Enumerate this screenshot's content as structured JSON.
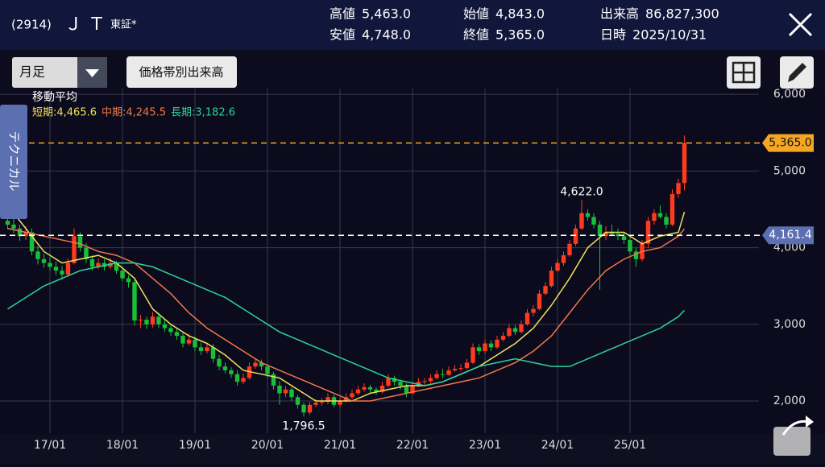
{
  "header": {
    "code": "(2914)",
    "name": "Ｊ Ｔ",
    "market": "東証*",
    "quotes": [
      {
        "label": "高値",
        "value": "5,463.0"
      },
      {
        "label": "安値",
        "value": "4,748.0"
      },
      {
        "label": "始値",
        "value": "4,843.0"
      },
      {
        "label": "終値",
        "value": "5,365.0"
      },
      {
        "label": "出来高",
        "value": "86,827,300"
      },
      {
        "label": "日時",
        "value": "2025/10/31"
      }
    ]
  },
  "toolbar": {
    "period": "月足",
    "volume_button": "価格帯別出来高",
    "side_tab": "テクニカル"
  },
  "chart_data": {
    "type": "candlestick",
    "legend_title": "移動平均",
    "up_color": "#ff3b1f",
    "down_color": "#18c038",
    "ylim": [
      1580,
      6075
    ],
    "yticks": [
      {
        "value": 2000,
        "label": "2,000"
      },
      {
        "value": 3000,
        "label": "3,000"
      },
      {
        "value": 4000,
        "label": "4,000"
      },
      {
        "value": 5000,
        "label": "5,000"
      },
      {
        "value": 6000,
        "label": "6,000"
      }
    ],
    "xticks": [
      "17/01",
      "18/01",
      "19/01",
      "20/01",
      "21/01",
      "22/01",
      "23/01",
      "24/01",
      "25/01"
    ],
    "grid": true,
    "x": [
      "16/06",
      "16/07",
      "16/08",
      "16/09",
      "16/10",
      "16/11",
      "16/12",
      "17/01",
      "17/02",
      "17/03",
      "17/04",
      "17/05",
      "17/06",
      "17/07",
      "17/08",
      "17/09",
      "17/10",
      "17/11",
      "17/12",
      "18/01",
      "18/02",
      "18/03",
      "18/04",
      "18/05",
      "18/06",
      "18/07",
      "18/08",
      "18/09",
      "18/10",
      "18/11",
      "18/12",
      "19/01",
      "19/02",
      "19/03",
      "19/04",
      "19/05",
      "19/06",
      "19/07",
      "19/08",
      "19/09",
      "19/10",
      "19/11",
      "19/12",
      "20/01",
      "20/02",
      "20/03",
      "20/04",
      "20/05",
      "20/06",
      "20/07",
      "20/08",
      "20/09",
      "20/10",
      "20/11",
      "20/12",
      "21/01",
      "21/02",
      "21/03",
      "21/04",
      "21/05",
      "21/06",
      "21/07",
      "21/08",
      "21/09",
      "21/10",
      "21/11",
      "21/12",
      "22/01",
      "22/02",
      "22/03",
      "22/04",
      "22/05",
      "22/06",
      "22/07",
      "22/08",
      "22/09",
      "22/10",
      "22/11",
      "22/12",
      "23/01",
      "23/02",
      "23/03",
      "23/04",
      "23/05",
      "23/06",
      "23/07",
      "23/08",
      "23/09",
      "23/10",
      "23/11",
      "23/12",
      "24/01",
      "24/02",
      "24/03",
      "24/04",
      "24/05",
      "24/06",
      "24/07",
      "24/08",
      "24/09",
      "24/10",
      "24/11",
      "24/12",
      "25/01",
      "25/02",
      "25/03",
      "25/04",
      "25/05",
      "25/06",
      "25/07",
      "25/08",
      "25/09",
      "25/10"
    ],
    "ohlc": [
      [
        4350,
        4420,
        4240,
        4300
      ],
      [
        4300,
        4380,
        4190,
        4250
      ],
      [
        4250,
        4300,
        4090,
        4150
      ],
      [
        4150,
        4280,
        4100,
        4200
      ],
      [
        4200,
        4250,
        3900,
        3950
      ],
      [
        3950,
        4020,
        3780,
        3850
      ],
      [
        3850,
        3920,
        3740,
        3800
      ],
      [
        3800,
        3880,
        3700,
        3750
      ],
      [
        3750,
        3820,
        3640,
        3700
      ],
      [
        3700,
        3760,
        3580,
        3650
      ],
      [
        3650,
        3860,
        3620,
        3800
      ],
      [
        3800,
        4250,
        3780,
        4150
      ],
      [
        4150,
        4200,
        3950,
        4000
      ],
      [
        4000,
        4060,
        3800,
        3850
      ],
      [
        3850,
        3900,
        3700,
        3750
      ],
      [
        3750,
        3860,
        3720,
        3800
      ],
      [
        3800,
        3850,
        3700,
        3750
      ],
      [
        3750,
        3860,
        3720,
        3800
      ],
      [
        3800,
        3830,
        3660,
        3700
      ],
      [
        3700,
        3750,
        3560,
        3600
      ],
      [
        3600,
        3640,
        3480,
        3550
      ],
      [
        3550,
        3580,
        2980,
        3050
      ],
      [
        3050,
        3120,
        2950,
        3060
      ],
      [
        3060,
        3100,
        2940,
        3000
      ],
      [
        3000,
        3160,
        2960,
        3100
      ],
      [
        3100,
        3150,
        2950,
        3000
      ],
      [
        3000,
        3060,
        2900,
        2950
      ],
      [
        2950,
        3000,
        2850,
        2900
      ],
      [
        2900,
        2960,
        2800,
        2850
      ],
      [
        2850,
        2900,
        2700,
        2750
      ],
      [
        2750,
        2880,
        2720,
        2800
      ],
      [
        2800,
        2840,
        2650,
        2700
      ],
      [
        2700,
        2760,
        2600,
        2650
      ],
      [
        2650,
        2760,
        2620,
        2700
      ],
      [
        2700,
        2740,
        2500,
        2550
      ],
      [
        2550,
        2600,
        2400,
        2450
      ],
      [
        2450,
        2500,
        2360,
        2400
      ],
      [
        2400,
        2440,
        2300,
        2350
      ],
      [
        2350,
        2400,
        2200,
        2250
      ],
      [
        2250,
        2360,
        2220,
        2300
      ],
      [
        2300,
        2500,
        2280,
        2450
      ],
      [
        2450,
        2560,
        2420,
        2500
      ],
      [
        2500,
        2540,
        2400,
        2450
      ],
      [
        2450,
        2480,
        2300,
        2350
      ],
      [
        2350,
        2380,
        2150,
        2200
      ],
      [
        2200,
        2260,
        1950,
        2100
      ],
      [
        2100,
        2200,
        2050,
        2150
      ],
      [
        2150,
        2180,
        2000,
        2050
      ],
      [
        2050,
        2080,
        1900,
        1950
      ],
      [
        1950,
        1980,
        1796.5,
        1850
      ],
      [
        1850,
        1990,
        1820,
        1950
      ],
      [
        1950,
        2020,
        1920,
        1980
      ],
      [
        1980,
        2040,
        1940,
        1990
      ],
      [
        1990,
        2100,
        1960,
        2050
      ],
      [
        2050,
        2080,
        1920,
        1950
      ],
      [
        1950,
        2050,
        1920,
        2000
      ],
      [
        2000,
        2100,
        1980,
        2050
      ],
      [
        2050,
        2150,
        2020,
        2100
      ],
      [
        2100,
        2200,
        2080,
        2150
      ],
      [
        2150,
        2230,
        2120,
        2180
      ],
      [
        2180,
        2210,
        2100,
        2150
      ],
      [
        2150,
        2180,
        2080,
        2120
      ],
      [
        2120,
        2250,
        2100,
        2200
      ],
      [
        2200,
        2350,
        2180,
        2300
      ],
      [
        2300,
        2330,
        2200,
        2250
      ],
      [
        2250,
        2280,
        2150,
        2200
      ],
      [
        2200,
        2230,
        2050,
        2100
      ],
      [
        2100,
        2250,
        2080,
        2200
      ],
      [
        2200,
        2300,
        2180,
        2250
      ],
      [
        2250,
        2300,
        2200,
        2260
      ],
      [
        2260,
        2350,
        2230,
        2300
      ],
      [
        2300,
        2400,
        2280,
        2350
      ],
      [
        2350,
        2420,
        2300,
        2340
      ],
      [
        2340,
        2450,
        2330,
        2400
      ],
      [
        2400,
        2470,
        2380,
        2420
      ],
      [
        2420,
        2480,
        2390,
        2430
      ],
      [
        2430,
        2550,
        2410,
        2500
      ],
      [
        2500,
        2750,
        2480,
        2700
      ],
      [
        2700,
        2740,
        2600,
        2650
      ],
      [
        2650,
        2800,
        2620,
        2750
      ],
      [
        2750,
        2790,
        2650,
        2700
      ],
      [
        2700,
        2850,
        2680,
        2800
      ],
      [
        2800,
        2900,
        2780,
        2850
      ],
      [
        2850,
        3000,
        2830,
        2950
      ],
      [
        2950,
        2990,
        2860,
        2900
      ],
      [
        2900,
        3050,
        2880,
        3000
      ],
      [
        3000,
        3200,
        2980,
        3150
      ],
      [
        3150,
        3250,
        3100,
        3200
      ],
      [
        3200,
        3450,
        3180,
        3400
      ],
      [
        3400,
        3550,
        3380,
        3500
      ],
      [
        3500,
        3750,
        3480,
        3700
      ],
      [
        3700,
        3850,
        3680,
        3800
      ],
      [
        3800,
        3950,
        3760,
        3900
      ],
      [
        3900,
        4100,
        3880,
        4050
      ],
      [
        4050,
        4300,
        4020,
        4250
      ],
      [
        4250,
        4622,
        4230,
        4450
      ],
      [
        4450,
        4500,
        4350,
        4400
      ],
      [
        4400,
        4450,
        4250,
        4300
      ],
      [
        4300,
        4350,
        3450,
        4150
      ],
      [
        4150,
        4280,
        4100,
        4200
      ],
      [
        4200,
        4300,
        4150,
        4180
      ],
      [
        4180,
        4250,
        4100,
        4150
      ],
      [
        4150,
        4200,
        4050,
        4100
      ],
      [
        4100,
        4150,
        3900,
        3950
      ],
      [
        3950,
        4000,
        3750,
        3850
      ],
      [
        3850,
        4100,
        3820,
        4050
      ],
      [
        4050,
        4400,
        4000,
        4350
      ],
      [
        4350,
        4500,
        4300,
        4450
      ],
      [
        4450,
        4550,
        4380,
        4400
      ],
      [
        4400,
        4450,
        4250,
        4300
      ],
      [
        4300,
        4760,
        4280,
        4700
      ],
      [
        4700,
        4900,
        4650,
        4843
      ],
      [
        4843,
        5463,
        4748,
        5365
      ]
    ],
    "series": [
      {
        "label": "短期:4,465.6",
        "color": "#f2e05a",
        "x": [
          "16/06",
          "16/09",
          "16/12",
          "17/03",
          "17/06",
          "17/09",
          "17/12",
          "18/03",
          "18/06",
          "18/09",
          "18/12",
          "19/03",
          "19/06",
          "19/09",
          "19/12",
          "20/03",
          "20/06",
          "20/09",
          "20/12",
          "21/03",
          "21/06",
          "21/09",
          "21/12",
          "22/03",
          "22/06",
          "22/09",
          "22/12",
          "23/03",
          "23/06",
          "23/09",
          "23/12",
          "24/03",
          "24/06",
          "24/09",
          "24/12",
          "25/03",
          "25/06",
          "25/09",
          "25/10"
        ],
        "values": [
          4550,
          4250,
          3950,
          3800,
          3850,
          3900,
          3800,
          3600,
          3200,
          3000,
          2850,
          2750,
          2600,
          2400,
          2350,
          2300,
          2150,
          2000,
          2000,
          2000,
          2100,
          2150,
          2200,
          2200,
          2250,
          2350,
          2450,
          2600,
          2750,
          2950,
          3250,
          3600,
          4000,
          4200,
          4200,
          4050,
          4150,
          4200,
          4465.6
        ]
      },
      {
        "label": "中期:4,245.5",
        "color": "#ef7848",
        "x": [
          "16/06",
          "16/09",
          "16/12",
          "17/03",
          "17/06",
          "17/09",
          "17/12",
          "18/03",
          "18/06",
          "18/09",
          "18/12",
          "19/03",
          "19/06",
          "19/09",
          "19/12",
          "20/03",
          "20/06",
          "20/09",
          "20/12",
          "21/03",
          "21/06",
          "21/09",
          "21/12",
          "22/03",
          "22/06",
          "22/09",
          "22/12",
          "23/03",
          "23/06",
          "23/09",
          "23/12",
          "24/03",
          "24/06",
          "24/09",
          "24/12",
          "25/03",
          "25/06",
          "25/09",
          "25/10"
        ],
        "values": [
          4250,
          4200,
          4150,
          4100,
          4050,
          3950,
          3900,
          3800,
          3600,
          3400,
          3150,
          2950,
          2800,
          2650,
          2500,
          2400,
          2300,
          2200,
          2100,
          2000,
          2000,
          2050,
          2100,
          2150,
          2200,
          2250,
          2300,
          2400,
          2500,
          2650,
          2850,
          3150,
          3450,
          3700,
          3850,
          3950,
          4000,
          4150,
          4245.5
        ]
      },
      {
        "label": "長期:3,182.6",
        "color": "#2ed19c",
        "x": [
          "16/06",
          "16/09",
          "16/12",
          "17/03",
          "17/06",
          "17/09",
          "17/12",
          "18/03",
          "18/06",
          "18/09",
          "18/12",
          "19/03",
          "19/06",
          "19/09",
          "19/12",
          "20/03",
          "20/06",
          "20/09",
          "20/12",
          "21/03",
          "21/06",
          "21/09",
          "21/12",
          "22/03",
          "22/06",
          "22/09",
          "22/12",
          "23/03",
          "23/06",
          "23/09",
          "23/12",
          "24/03",
          "24/06",
          "24/09",
          "24/12",
          "25/03",
          "25/06",
          "25/09",
          "25/10"
        ],
        "values": [
          3200,
          3350,
          3500,
          3600,
          3700,
          3750,
          3800,
          3800,
          3750,
          3650,
          3550,
          3450,
          3350,
          3200,
          3050,
          2900,
          2800,
          2700,
          2600,
          2500,
          2400,
          2300,
          2250,
          2200,
          2250,
          2350,
          2450,
          2500,
          2550,
          2500,
          2450,
          2450,
          2550,
          2650,
          2750,
          2850,
          2950,
          3100,
          3182.6
        ]
      }
    ],
    "price_lines": [
      {
        "value": 5365.0,
        "label": "5,365.0",
        "color": "#f5a623"
      },
      {
        "value": 4161.4,
        "label": "4,161.4",
        "color": "#ffffff"
      }
    ],
    "annotations": [
      {
        "x": "24/05",
        "value": 4622.0,
        "label": "4,622.0"
      },
      {
        "x": "20/07",
        "value": 1796.5,
        "label": "1,796.5"
      }
    ]
  }
}
